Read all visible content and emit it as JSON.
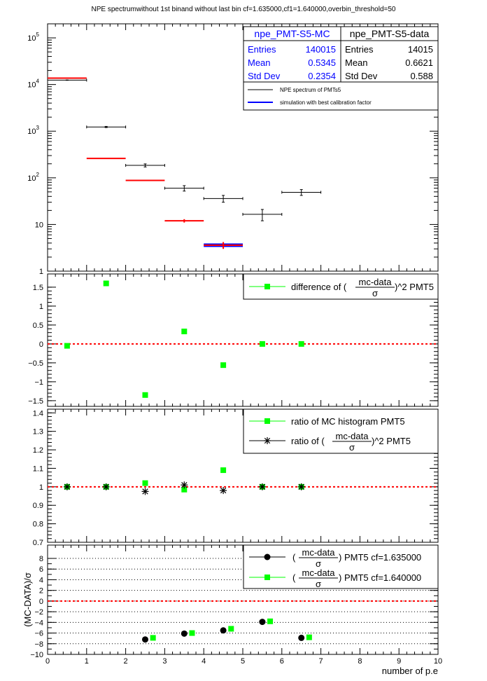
{
  "title": "NPE spectrumwithout 1st binand without last bin cf=1.635000,cf1=1.640000,overbin_threshold=50",
  "xlabel": "number of p.e",
  "x_ticks": [
    "0",
    "1",
    "2",
    "3",
    "4",
    "5",
    "6",
    "7",
    "8",
    "9",
    "10"
  ],
  "colors": {
    "data": "#000000",
    "mc": "#ff0000",
    "mc_outline": "#0000ff",
    "marker_green": "#00ff00",
    "dashed": "#ff0000"
  },
  "stats_mc": {
    "name": "npe_PMT-S5-MC",
    "rows": [
      {
        "label": "Entries",
        "value": "140015"
      },
      {
        "label": "Mean",
        "value": "0.5345"
      },
      {
        "label": "Std Dev",
        "value": "0.2354"
      }
    ]
  },
  "stats_data": {
    "name": "npe_PMT-S5-data",
    "rows": [
      {
        "label": "Entries",
        "value": "14015"
      },
      {
        "label": "Mean",
        "value": "0.6621"
      },
      {
        "label": "Std Dev",
        "value": "0.588"
      }
    ]
  },
  "legend1": {
    "items": [
      "NPE spectrum of PMTs5",
      "simulation with best calibration factor"
    ]
  },
  "legend2": {
    "text_a": "difference of (",
    "frac_num": "mc-data",
    "frac_den": "σ",
    "text_b": ")^2 PMT5"
  },
  "legend3": {
    "item1": "ratio of MC histogram  PMT5",
    "text_a": "ratio of (",
    "frac_num": "mc-data",
    "frac_den": "σ",
    "text_b": ")^2 PMT5"
  },
  "legend4": {
    "frac_num": "mc-data",
    "frac_den": "σ",
    "item1_suffix": ") PMT5 cf=1.635000",
    "item2_suffix": ") PMT5 cf=1.640000",
    "open": "("
  },
  "panel4_ylabel": "(MC-DATA)/σ",
  "chart_data": [
    {
      "type": "scatter",
      "panel": "spectrum",
      "log_y": true,
      "xlim": [
        0,
        10
      ],
      "ylim": [
        1,
        200000
      ],
      "y_ticks": [
        {
          "v": 10,
          "label": "10"
        },
        {
          "v": 100,
          "label": "10",
          "exp": "2"
        },
        {
          "v": 1000,
          "label": "10",
          "exp": "3"
        },
        {
          "v": 10000,
          "label": "10",
          "exp": "4"
        },
        {
          "v": 100000,
          "label": "10",
          "exp": "5"
        }
      ],
      "series": [
        {
          "name": "NPE spectrum of PMTs5",
          "x": [
            0.5,
            1.5,
            2.5,
            3.5,
            4.5,
            5.5,
            6.5
          ],
          "xerr": 0.5,
          "y": [
            12400,
            1230,
            185,
            60,
            36,
            16.5,
            49
          ],
          "yerr": [
            110,
            35,
            14,
            8,
            6,
            4.5,
            7
          ]
        },
        {
          "name": "simulation with best calibration factor",
          "x": [
            0.5,
            1.5,
            2.5,
            3.5,
            4.5
          ],
          "xerr": 0.5,
          "y": [
            13700,
            260,
            88,
            12,
            3.6
          ],
          "yerr": [
            0,
            0,
            0,
            1,
            0.6
          ]
        }
      ]
    },
    {
      "type": "scatter",
      "panel": "difference",
      "xlim": [
        0,
        10
      ],
      "ylim": [
        -1.65,
        1.85
      ],
      "y_ticks": [
        -1.5,
        -1,
        -0.5,
        0,
        0.5,
        1,
        1.5
      ],
      "y_tick_labels": [
        "−1.5",
        "−1",
        "−0.5",
        "0",
        "0.5",
        "1",
        "1.5"
      ],
      "series": [
        {
          "name": "difference",
          "x": [
            0.5,
            1.5,
            2.5,
            3.5,
            4.5,
            5.5,
            6.5
          ],
          "y": [
            -0.05,
            1.6,
            -1.35,
            0.33,
            -0.56,
            0.0,
            0.0
          ]
        }
      ]
    },
    {
      "type": "scatter",
      "panel": "ratio",
      "xlim": [
        0,
        10
      ],
      "ylim": [
        0.7,
        1.42
      ],
      "y_ticks": [
        0.7,
        0.8,
        0.9,
        1,
        1.1,
        1.2,
        1.3,
        1.4
      ],
      "y_tick_labels": [
        "0.7",
        "0.8",
        "0.9",
        "1",
        "1.1",
        "1.2",
        "1.3",
        "1.4"
      ],
      "series": [
        {
          "name": "ratio of MC histogram  PMT5",
          "x": [
            0.5,
            1.5,
            2.5,
            3.5,
            4.5,
            5.5,
            6.5
          ],
          "y": [
            1.0,
            1.0,
            1.02,
            0.985,
            1.09,
            1.0,
            1.0
          ]
        },
        {
          "name": "ratio star",
          "x": [
            0.5,
            1.5,
            2.5,
            3.5,
            4.5,
            5.5,
            6.5
          ],
          "y": [
            1.0,
            1.0,
            0.975,
            1.01,
            0.98,
            1.0,
            1.0
          ]
        }
      ]
    },
    {
      "type": "scatter",
      "panel": "pull",
      "xlim": [
        0,
        10
      ],
      "ylim": [
        -10,
        10.5
      ],
      "y_ticks": [
        -10,
        -8,
        -6,
        -4,
        -2,
        0,
        2,
        4,
        6,
        8
      ],
      "y_tick_labels": [
        "−10",
        "−8",
        "−6",
        "−4",
        "−2",
        "0",
        "2",
        "4",
        "6",
        "8"
      ],
      "series": [
        {
          "name": "cf=1.635000",
          "x": [
            2.5,
            3.5,
            4.5,
            5.5,
            6.5
          ],
          "y": [
            -7.2,
            -6.1,
            -5.5,
            -3.9,
            -6.9
          ]
        },
        {
          "name": "cf=1.640000",
          "x": [
            2.7,
            3.7,
            4.7,
            5.7,
            6.7
          ],
          "y": [
            -6.9,
            -6.0,
            -5.2,
            -3.8,
            -6.8
          ]
        }
      ]
    }
  ]
}
